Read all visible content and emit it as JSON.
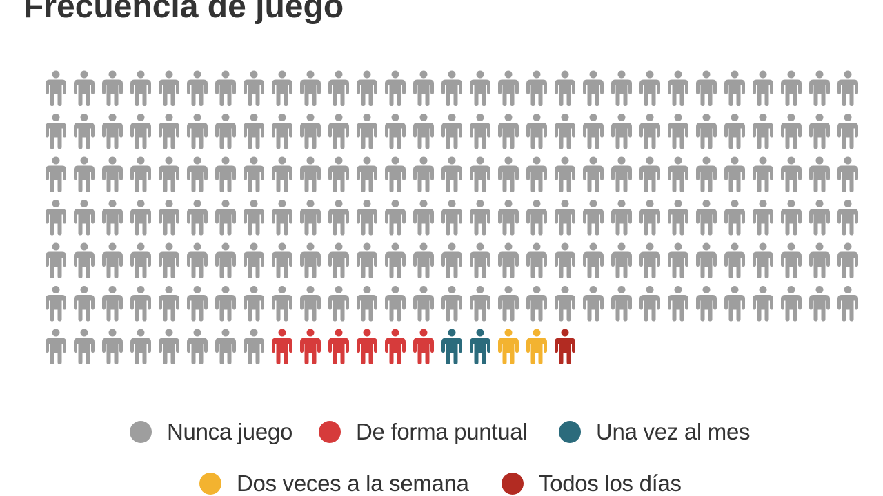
{
  "title": "Frecuencia de juego",
  "chart_data": {
    "type": "pictogram",
    "unit": "persona",
    "columns": 29,
    "categories": [
      {
        "name": "Nunca juego",
        "value": 182,
        "color": "#9e9e9e"
      },
      {
        "name": "De forma puntual",
        "value": 6,
        "color": "#d63b3b"
      },
      {
        "name": "Una vez al mes",
        "value": 2,
        "color": "#2b6b7c"
      },
      {
        "name": "Dos veces a la semana",
        "value": 2,
        "color": "#f3b330"
      },
      {
        "name": "Todos los días",
        "value": 1,
        "color": "#b22b22"
      }
    ],
    "legend_position": "bottom"
  }
}
